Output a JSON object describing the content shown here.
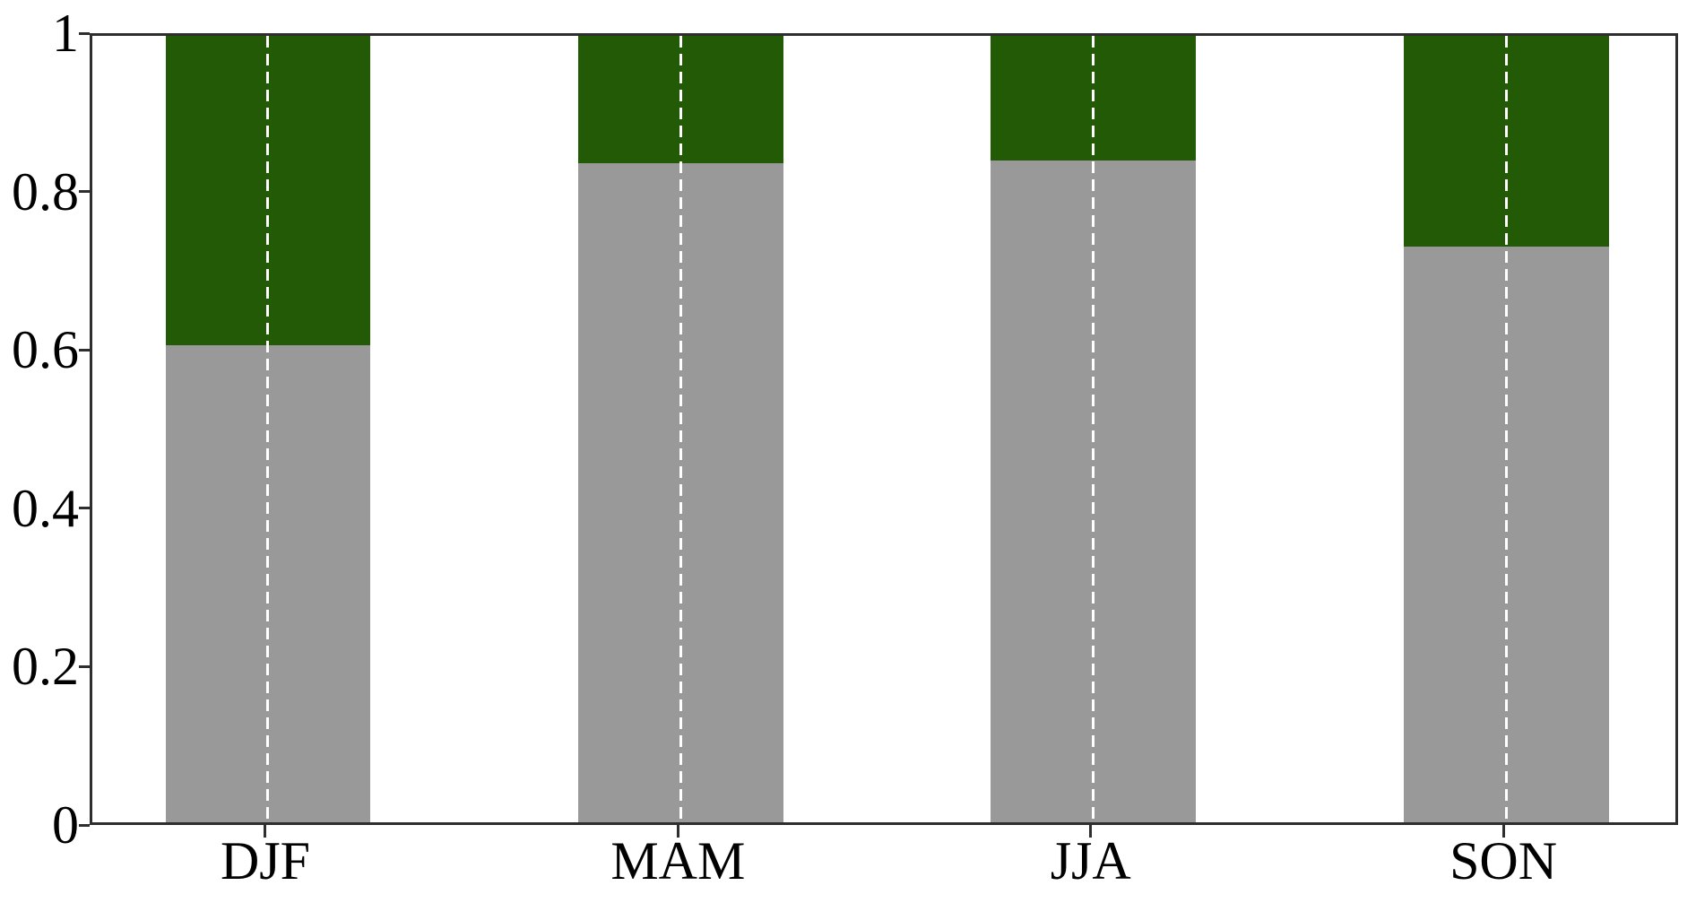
{
  "chart_data": {
    "type": "bar",
    "subtype": "stacked",
    "title": "",
    "xlabel": "",
    "ylabel": "",
    "categories": [
      "DJF",
      "MAM",
      "JJA",
      "SON"
    ],
    "series": [
      {
        "name": "gray-lower-fraction",
        "color": "#999999",
        "values": [
          0.607,
          0.838,
          0.841,
          0.732
        ]
      },
      {
        "name": "dark-green-upper-fraction",
        "color": "#235a05",
        "values": [
          0.393,
          0.162,
          0.159,
          0.268
        ]
      }
    ],
    "stack_total": 1,
    "ylim": [
      0,
      1
    ],
    "ytick_values": [
      0,
      0.2,
      0.4,
      0.6,
      0.8,
      1
    ],
    "ytick_labels": [
      "0",
      "0.2",
      "0.4",
      "0.6",
      "0.8",
      "1"
    ],
    "grid": "vertical white dashed line at each bar center",
    "legend": "none"
  },
  "style": {
    "bar_gray": "#999999",
    "bar_green": "#235a05",
    "axis_color": "#2e2e2e",
    "text_color": "#000000",
    "background": "#ffffff",
    "gridline_color": "#ffffff"
  }
}
